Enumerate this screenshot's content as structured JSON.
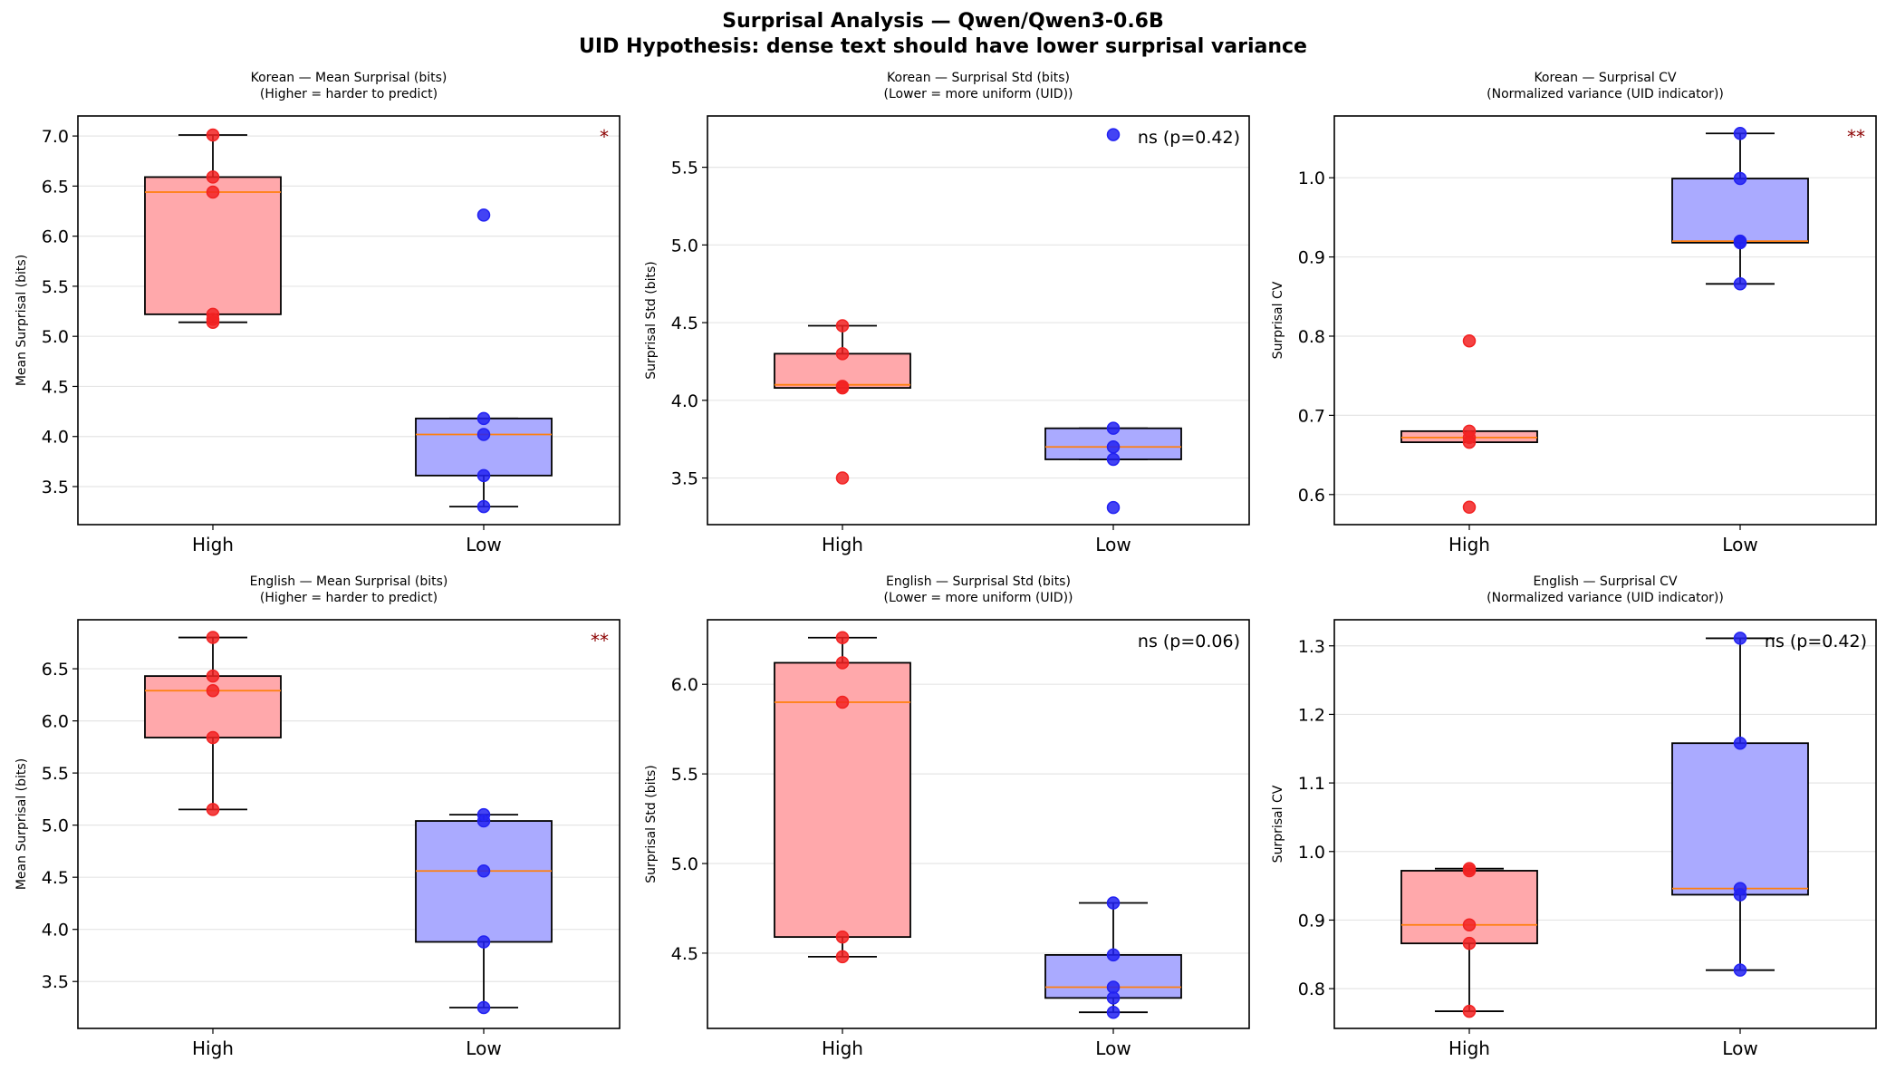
{
  "figure": {
    "title_line1": "Surprisal Analysis — Qwen/Qwen3-0.6B",
    "title_line2": "UID Hypothesis: dense text should have lower surprisal variance"
  },
  "colors": {
    "high_box": "#ffa8ab",
    "low_box": "#aaaaff",
    "high_point": "#f22222",
    "low_point": "#2222f2",
    "median": "#ff7f0e",
    "sig": "#8b0000",
    "grid": "#e5e5e5"
  },
  "chart_data": [
    {
      "type": "box",
      "title": "Korean — Mean Surprisal (bits)",
      "subtitle": "(Higher = harder to predict)",
      "ylabel": "Mean Surprisal (bits)",
      "categories": [
        "High",
        "Low"
      ],
      "ylim": [
        3.12,
        7.2
      ],
      "yticks": [
        3.5,
        4.0,
        4.5,
        5.0,
        5.5,
        6.0,
        6.5,
        7.0
      ],
      "ytick_labels": [
        "3.5",
        "4.0",
        "4.5",
        "5.0",
        "5.5",
        "6.0",
        "6.5",
        "7.0"
      ],
      "boxes": [
        {
          "whislo": 5.14,
          "q1": 5.22,
          "med": 6.44,
          "q3": 6.59,
          "whishi": 7.01
        },
        {
          "whislo": 3.3,
          "q1": 3.61,
          "med": 4.02,
          "q3": 4.18,
          "whishi": 4.18
        }
      ],
      "points": [
        [
          7.01,
          6.59,
          6.44,
          5.22,
          5.17,
          5.14
        ],
        [
          6.21,
          4.18,
          4.02,
          3.61,
          3.3
        ]
      ],
      "annotation": "*"
    },
    {
      "type": "box",
      "title": "Korean — Surprisal Std (bits)",
      "subtitle": "(Lower = more uniform (UID))",
      "ylabel": "Surprisal Std (bits)",
      "categories": [
        "High",
        "Low"
      ],
      "ylim": [
        3.2,
        5.83
      ],
      "yticks": [
        3.5,
        4.0,
        4.5,
        5.0,
        5.5
      ],
      "ytick_labels": [
        "3.5",
        "4.0",
        "4.5",
        "5.0",
        "5.5"
      ],
      "boxes": [
        {
          "whislo": 4.08,
          "q1": 4.08,
          "med": 4.1,
          "q3": 4.3,
          "whishi": 4.48
        },
        {
          "whislo": 3.62,
          "q1": 3.62,
          "med": 3.7,
          "q3": 3.82,
          "whishi": 3.82
        }
      ],
      "points": [
        [
          4.48,
          4.3,
          4.09,
          4.08,
          3.5
        ],
        [
          5.71,
          3.82,
          3.7,
          3.62,
          3.31
        ]
      ],
      "annotation": "ns (p=0.42)"
    },
    {
      "type": "box",
      "title": "Korean — Surprisal CV",
      "subtitle": "(Normalized variance (UID indicator))",
      "ylabel": "Surprisal CV",
      "categories": [
        "High",
        "Low"
      ],
      "ylim": [
        0.562,
        1.078
      ],
      "yticks": [
        0.6,
        0.7,
        0.8,
        0.9,
        1.0
      ],
      "ytick_labels": [
        "0.6",
        "0.7",
        "0.8",
        "0.9",
        "1.0"
      ],
      "boxes": [
        {
          "whislo": 0.666,
          "q1": 0.666,
          "med": 0.672,
          "q3": 0.68,
          "whishi": 0.68
        },
        {
          "whislo": 0.866,
          "q1": 0.918,
          "med": 0.92,
          "q3": 0.999,
          "whishi": 1.056
        }
      ],
      "points": [
        [
          0.794,
          0.68,
          0.672,
          0.666,
          0.584
        ],
        [
          1.056,
          0.999,
          0.92,
          0.918,
          0.866
        ]
      ],
      "annotation": "**"
    },
    {
      "type": "box",
      "title": "English — Mean Surprisal (bits)",
      "subtitle": "(Higher = harder to predict)",
      "ylabel": "Mean Surprisal (bits)",
      "categories": [
        "High",
        "Low"
      ],
      "ylim": [
        3.05,
        6.97
      ],
      "yticks": [
        3.5,
        4.0,
        4.5,
        5.0,
        5.5,
        6.0,
        6.5
      ],
      "ytick_labels": [
        "3.5",
        "4.0",
        "4.5",
        "5.0",
        "5.5",
        "6.0",
        "6.5"
      ],
      "boxes": [
        {
          "whislo": 5.15,
          "q1": 5.84,
          "med": 6.29,
          "q3": 6.43,
          "whishi": 6.8
        },
        {
          "whislo": 3.25,
          "q1": 3.88,
          "med": 4.56,
          "q3": 5.04,
          "whishi": 5.1
        }
      ],
      "points": [
        [
          6.8,
          6.43,
          6.29,
          5.84,
          5.15
        ],
        [
          5.1,
          5.04,
          4.56,
          3.88,
          3.25
        ]
      ],
      "annotation": "**"
    },
    {
      "type": "box",
      "title": "English — Surprisal Std (bits)",
      "subtitle": "(Lower = more uniform (UID))",
      "ylabel": "Surprisal Std (bits)",
      "categories": [
        "High",
        "Low"
      ],
      "ylim": [
        4.08,
        6.36
      ],
      "yticks": [
        4.5,
        5.0,
        5.5,
        6.0
      ],
      "ytick_labels": [
        "4.5",
        "5.0",
        "5.5",
        "6.0"
      ],
      "boxes": [
        {
          "whislo": 4.48,
          "q1": 4.59,
          "med": 5.9,
          "q3": 6.12,
          "whishi": 6.26
        },
        {
          "whislo": 4.17,
          "q1": 4.25,
          "med": 4.31,
          "q3": 4.49,
          "whishi": 4.78
        }
      ],
      "points": [
        [
          6.26,
          6.12,
          5.9,
          4.59,
          4.48
        ],
        [
          4.78,
          4.49,
          4.31,
          4.25,
          4.17
        ]
      ],
      "annotation": "ns (p=0.06)"
    },
    {
      "type": "box",
      "title": "English — Surprisal CV",
      "subtitle": "(Normalized variance (UID indicator))",
      "ylabel": "Surprisal CV",
      "categories": [
        "High",
        "Low"
      ],
      "ylim": [
        0.742,
        1.338
      ],
      "yticks": [
        0.8,
        0.9,
        1.0,
        1.1,
        1.2,
        1.3
      ],
      "ytick_labels": [
        "0.8",
        "0.9",
        "1.0",
        "1.1",
        "1.2",
        "1.3"
      ],
      "boxes": [
        {
          "whislo": 0.767,
          "q1": 0.866,
          "med": 0.893,
          "q3": 0.972,
          "whishi": 0.975
        },
        {
          "whislo": 0.827,
          "q1": 0.937,
          "med": 0.946,
          "q3": 1.158,
          "whishi": 1.311
        }
      ],
      "points": [
        [
          0.975,
          0.972,
          0.893,
          0.866,
          0.767
        ],
        [
          1.311,
          1.158,
          0.946,
          0.937,
          0.827
        ]
      ],
      "annotation": "ns (p=0.42)"
    }
  ]
}
